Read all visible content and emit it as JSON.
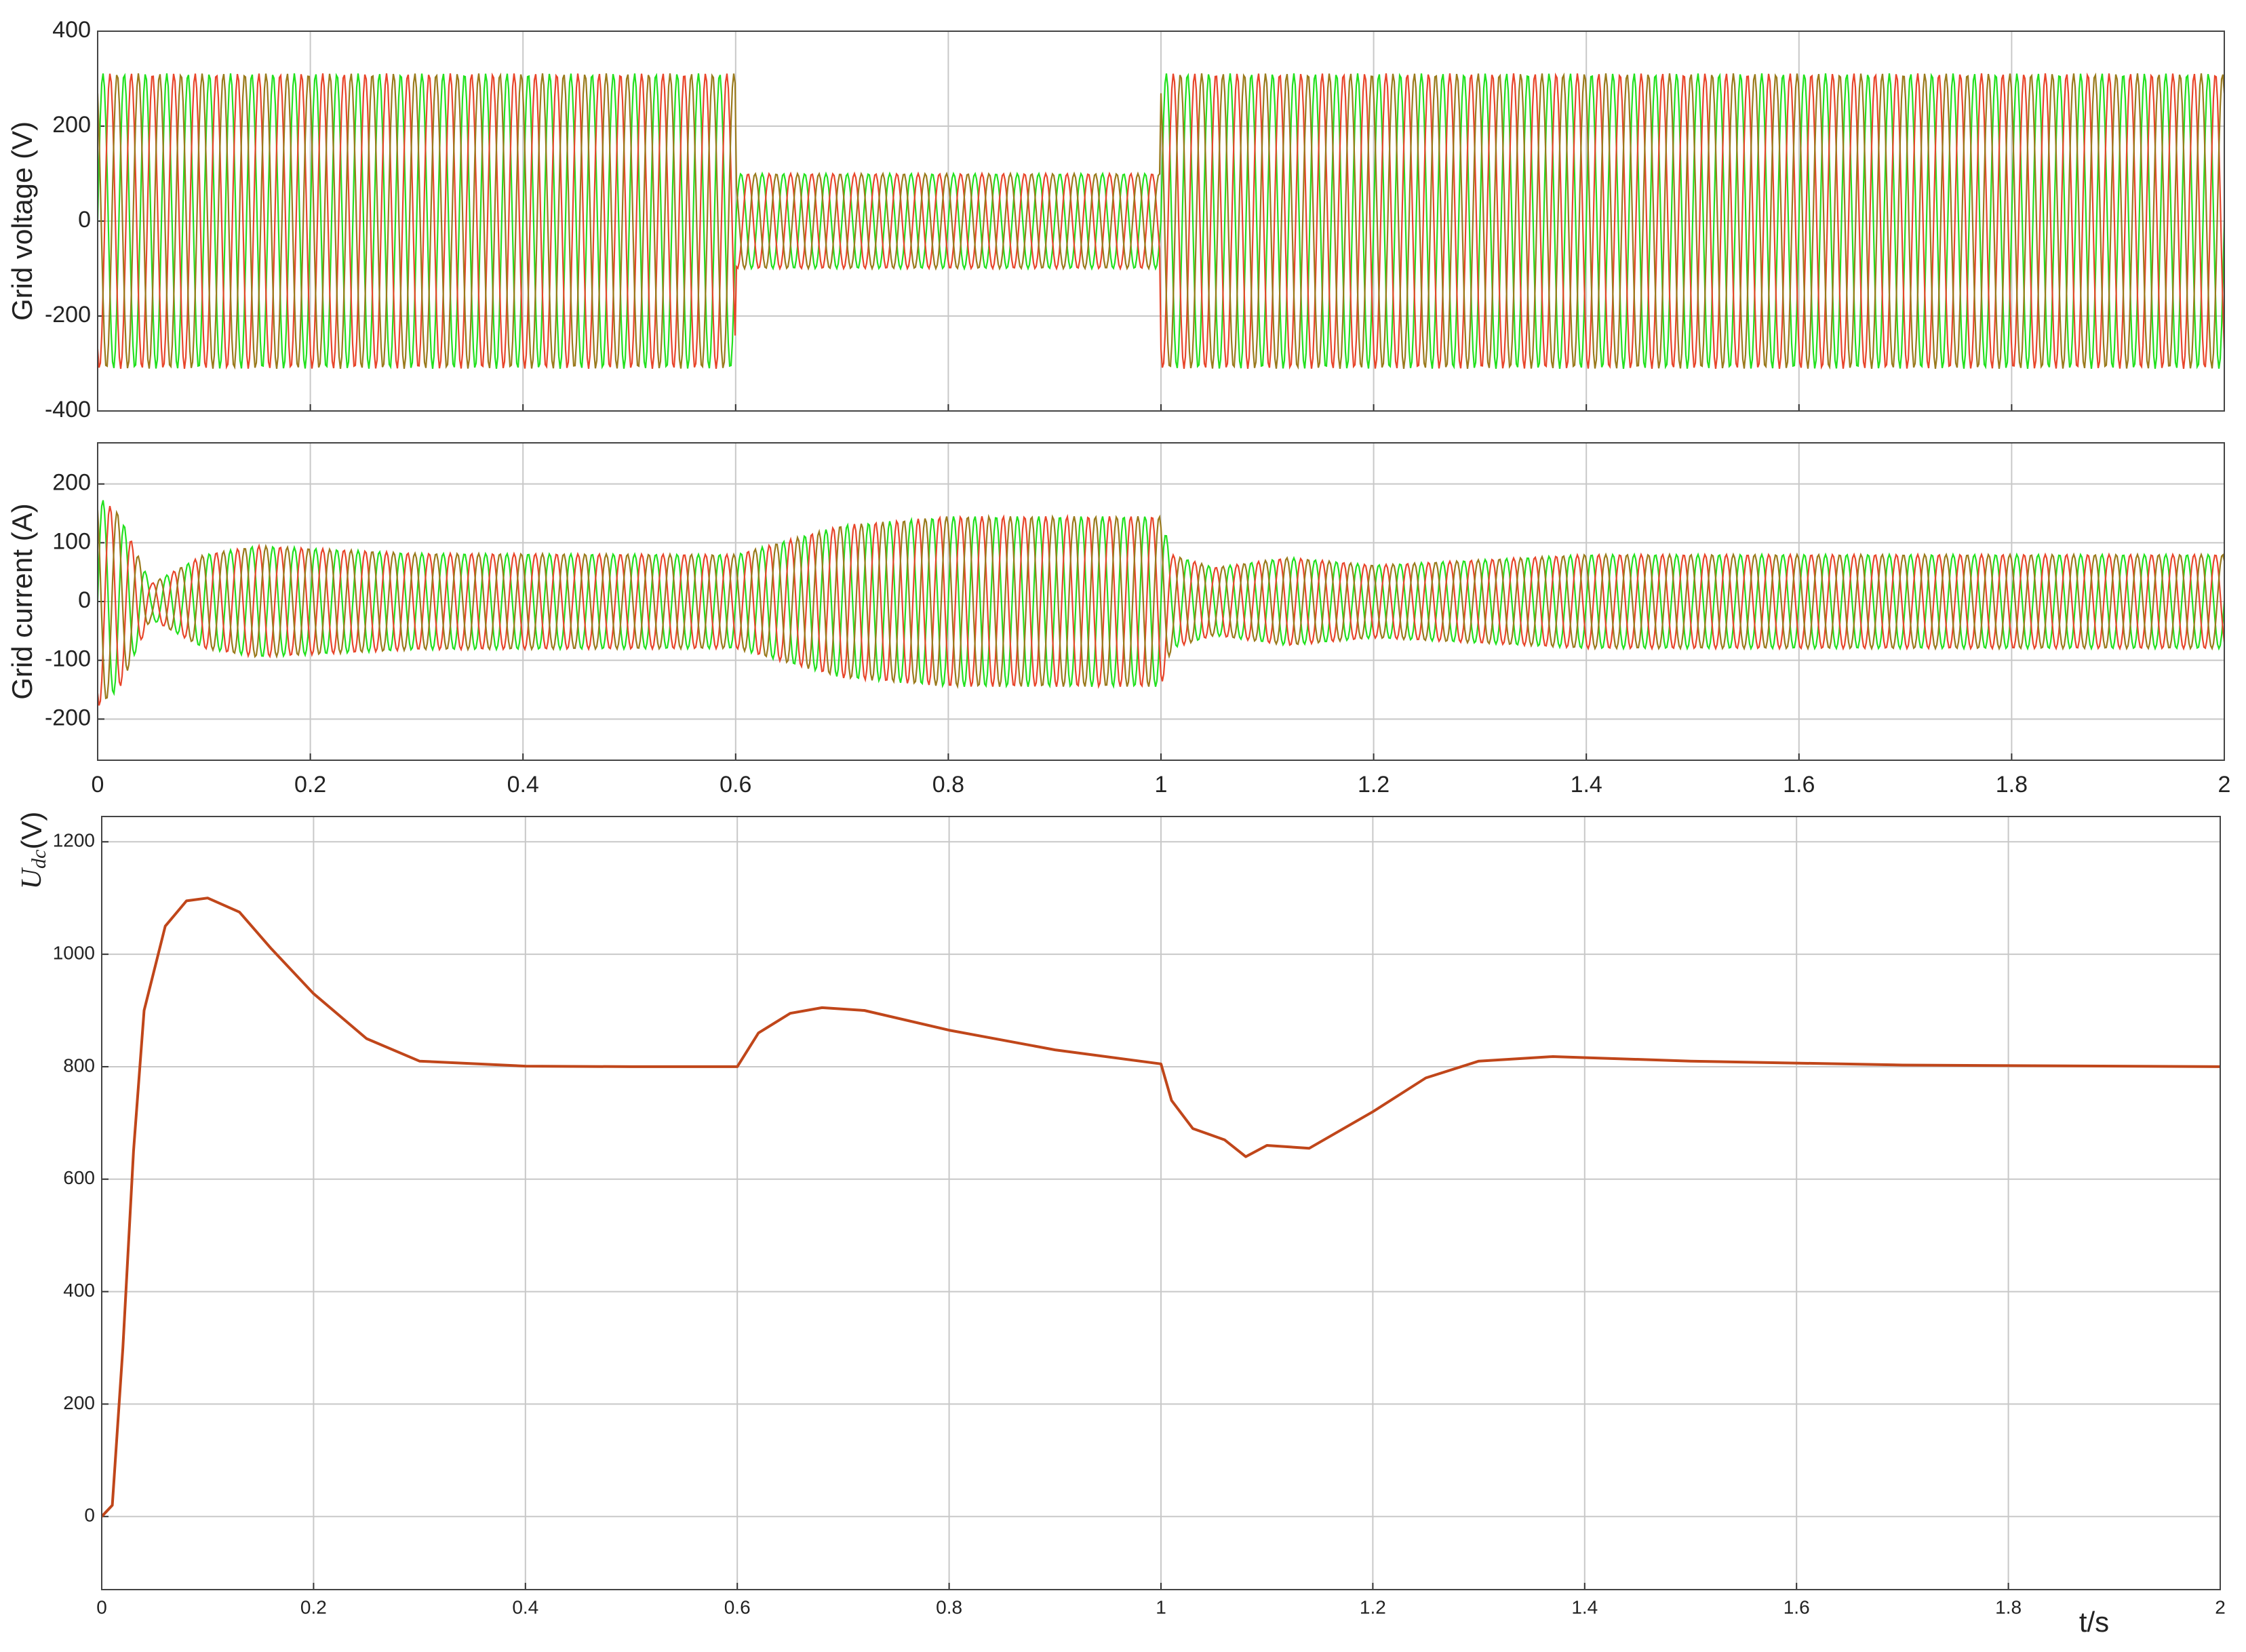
{
  "chart_data": [
    {
      "type": "waveform",
      "ylabel": "Grid voltage (V)",
      "frequency": 50,
      "x": [
        0,
        0.6,
        0.6,
        1.0,
        1.0,
        2
      ],
      "series": [
        {
          "color": "#22e01e",
          "phase_deg": 0,
          "amplitude": [
            311,
            311,
            100,
            100,
            311,
            311
          ]
        },
        {
          "color": "#e8452a",
          "phase_deg": -120,
          "amplitude": [
            311,
            311,
            100,
            100,
            311,
            311
          ]
        },
        {
          "color": "#9a7a1c",
          "phase_deg": 120,
          "amplitude": [
            311,
            311,
            100,
            100,
            311,
            311
          ]
        }
      ],
      "xlim": [
        0,
        2
      ],
      "xticks": [
        0,
        0.2,
        0.4,
        0.6,
        0.8,
        1,
        1.2,
        1.4,
        1.6,
        1.8,
        2
      ],
      "xtick_labels": false,
      "ylim": [
        -400,
        400
      ],
      "yticks": [
        -400,
        -200,
        0,
        200,
        400
      ],
      "grid": true
    },
    {
      "type": "waveform",
      "ylabel": "Grid current (A)",
      "frequency": 50,
      "x": [
        0,
        0.02,
        0.05,
        0.1,
        0.15,
        0.3,
        0.6,
        0.7,
        0.8,
        1.0,
        1.01,
        1.05,
        1.12,
        1.2,
        1.4,
        2
      ],
      "series": [
        {
          "color": "#22e01e",
          "phase_deg": 0,
          "amplitude": [
            180,
            150,
            30,
            80,
            95,
            82,
            80,
            130,
            145,
            145,
            80,
            58,
            75,
            62,
            80,
            80
          ]
        },
        {
          "color": "#e8452a",
          "phase_deg": -120,
          "amplitude": [
            180,
            150,
            30,
            80,
            95,
            82,
            80,
            130,
            145,
            145,
            80,
            58,
            75,
            62,
            80,
            80
          ]
        },
        {
          "color": "#9a7a1c",
          "phase_deg": 120,
          "amplitude": [
            180,
            150,
            30,
            80,
            95,
            82,
            80,
            130,
            145,
            145,
            80,
            58,
            75,
            62,
            80,
            80
          ]
        }
      ],
      "xlim": [
        0,
        2
      ],
      "xticks": [
        0,
        0.2,
        0.4,
        0.6,
        0.8,
        1,
        1.2,
        1.4,
        1.6,
        1.8,
        2
      ],
      "xtick_labels": true,
      "ylim": [
        -270,
        270
      ],
      "yticks": [
        -200,
        -100,
        0,
        100,
        200
      ],
      "grid": true
    },
    {
      "type": "line",
      "ylabel_main": "U",
      "ylabel_sub": "dc",
      "ylabel_unit": "(V)",
      "xlabel": "t/s",
      "x": [
        0,
        0.01,
        0.02,
        0.03,
        0.04,
        0.06,
        0.08,
        0.1,
        0.13,
        0.16,
        0.2,
        0.25,
        0.3,
        0.4,
        0.5,
        0.6,
        0.62,
        0.65,
        0.68,
        0.72,
        0.8,
        0.9,
        1.0,
        1.01,
        1.03,
        1.06,
        1.08,
        1.1,
        1.14,
        1.2,
        1.25,
        1.3,
        1.37,
        1.5,
        1.7,
        2
      ],
      "series": [
        {
          "color": "#c0461a",
          "values": [
            0,
            20,
            300,
            650,
            900,
            1050,
            1095,
            1100,
            1075,
            1010,
            930,
            850,
            810,
            801,
            800,
            800,
            860,
            895,
            905,
            900,
            865,
            830,
            805,
            740,
            690,
            670,
            640,
            660,
            655,
            720,
            780,
            810,
            818,
            810,
            803,
            800
          ]
        }
      ],
      "xlim": [
        0,
        2
      ],
      "xticks": [
        0,
        0.2,
        0.4,
        0.6,
        0.8,
        1,
        1.2,
        1.4,
        1.6,
        1.8,
        2
      ],
      "xtick_labels": true,
      "ylim": [
        -130,
        1245
      ],
      "yticks": [
        0,
        200,
        400,
        600,
        800,
        1000,
        1200
      ],
      "grid": true
    }
  ]
}
